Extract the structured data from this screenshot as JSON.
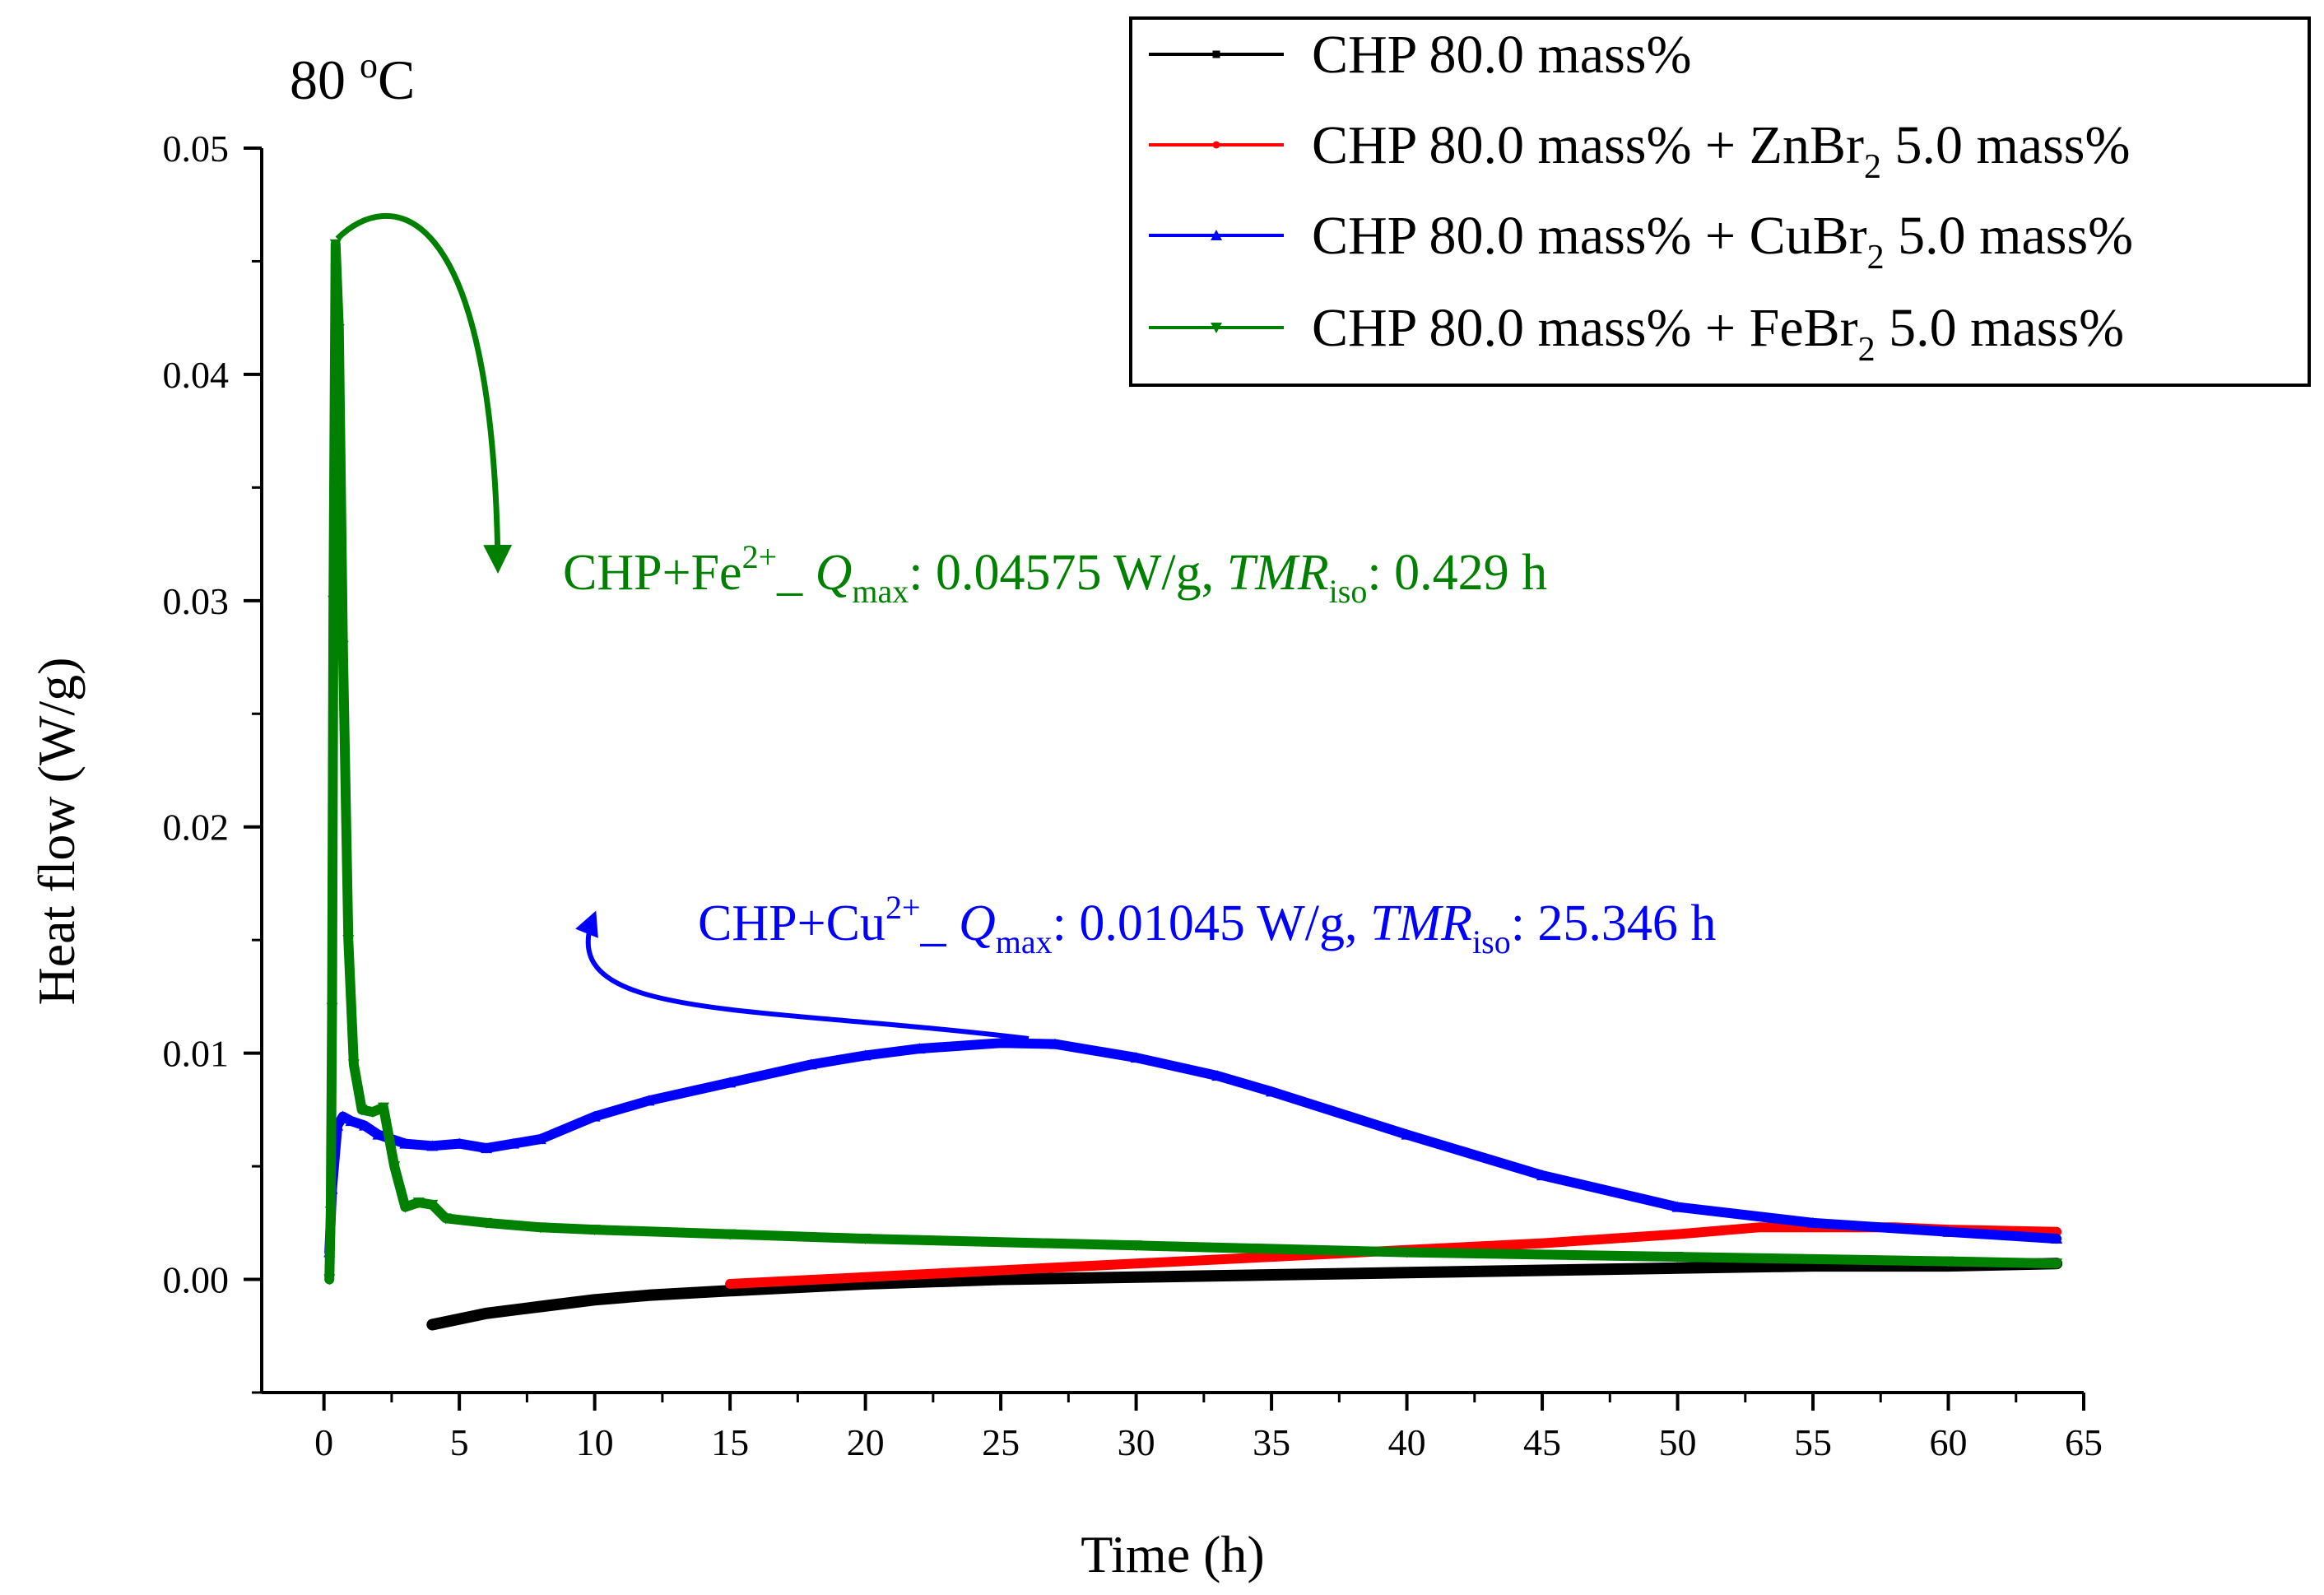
{
  "chart_data": {
    "type": "line",
    "title": "80 °C",
    "title_parts": {
      "value": "80 ",
      "sup": "o",
      "unit": "C"
    },
    "xlabel": "Time (h)",
    "ylabel": "Heat flow (W/g)",
    "xlim": [
      -2.3,
      65
    ],
    "ylim": [
      -0.005,
      0.05
    ],
    "xticks": [
      0,
      5,
      10,
      15,
      20,
      25,
      30,
      35,
      40,
      45,
      50,
      55,
      60,
      65
    ],
    "yticks": [
      0.0,
      0.01,
      0.02,
      0.03,
      0.04,
      0.05
    ],
    "xtick_labels": [
      "0",
      "5",
      "10",
      "15",
      "20",
      "25",
      "30",
      "35",
      "40",
      "45",
      "50",
      "55",
      "60",
      "65"
    ],
    "ytick_labels": [
      "0.00",
      "0.01",
      "0.02",
      "0.03",
      "0.04",
      "0.05"
    ],
    "grid": false,
    "legend_position": "top-right",
    "series": [
      {
        "name": "CHP 80.0 mass%",
        "legend_parts": {
          "base": "CHP 80.0 mass%",
          "sub": "",
          "tail": ""
        },
        "color": "#000000",
        "marker": "square",
        "x": [
          4,
          6,
          8,
          10,
          12,
          15,
          20,
          25,
          30,
          35,
          40,
          45,
          50,
          55,
          60,
          64
        ],
        "y": [
          -0.002,
          -0.0015,
          -0.0012,
          -0.0009,
          -0.0007,
          -0.0005,
          -0.0002,
          0.0,
          0.0001,
          0.0002,
          0.0003,
          0.0004,
          0.0005,
          0.0006,
          0.0006,
          0.0007
        ]
      },
      {
        "name": "CHP 80.0 mass% + ZnBr2 5.0 mass%",
        "legend_parts": {
          "base": "CHP 80.0 mass% + ZnBr",
          "sub": "2",
          "tail": " 5.0 mass%"
        },
        "color": "#ff0000",
        "marker": "circle",
        "x": [
          15,
          20,
          25,
          30,
          35,
          40,
          45,
          50,
          53,
          55,
          58,
          60,
          64
        ],
        "y": [
          -0.0002,
          0.0001,
          0.0004,
          0.0007,
          0.001,
          0.0013,
          0.0016,
          0.002,
          0.0023,
          0.0023,
          0.0023,
          0.0022,
          0.0021
        ]
      },
      {
        "name": "CHP 80.0 mass% + CuBr2 5.0 mass%",
        "legend_parts": {
          "base": "CHP 80.0 mass% + CuBr",
          "sub": "2",
          "tail": " 5.0 mass%"
        },
        "color": "#0000ff",
        "marker": "triangle-up",
        "x": [
          0.2,
          0.3,
          0.5,
          0.7,
          1.0,
          1.5,
          2.0,
          3.0,
          4.0,
          5.0,
          6.0,
          7.0,
          8.0,
          10,
          12,
          15,
          18,
          20,
          22,
          25,
          27,
          30,
          33,
          35,
          40,
          45,
          50,
          55,
          60,
          64
        ],
        "y": [
          0.0012,
          0.004,
          0.0068,
          0.0072,
          0.007,
          0.0068,
          0.0064,
          0.006,
          0.0059,
          0.006,
          0.0058,
          0.006,
          0.0062,
          0.0072,
          0.0079,
          0.0087,
          0.0095,
          0.0099,
          0.0102,
          0.01045,
          0.0104,
          0.0098,
          0.009,
          0.0083,
          0.0064,
          0.0046,
          0.0032,
          0.0025,
          0.0021,
          0.0018
        ]
      },
      {
        "name": "CHP 80.0 mass% + FeBr2 5.0 mass%",
        "legend_parts": {
          "base": "CHP 80.0 mass% + FeBr",
          "sub": "2",
          "tail": " 5.0 mass%"
        },
        "color": "#008000",
        "marker": "triangle-down",
        "x": [
          0.2,
          0.25,
          0.3,
          0.35,
          0.43,
          0.55,
          0.7,
          0.9,
          1.1,
          1.4,
          1.8,
          2.2,
          2.6,
          3.0,
          3.5,
          4.0,
          4.5,
          6,
          8,
          10,
          15,
          20,
          30,
          40,
          50,
          60,
          64
        ],
        "y": [
          0.0,
          0.003,
          0.012,
          0.03,
          0.04575,
          0.042,
          0.028,
          0.015,
          0.0095,
          0.0075,
          0.0074,
          0.0076,
          0.005,
          0.0032,
          0.0034,
          0.0033,
          0.0027,
          0.0025,
          0.0023,
          0.0022,
          0.002,
          0.0018,
          0.0015,
          0.0012,
          0.001,
          0.0008,
          0.0007
        ]
      }
    ],
    "annotations": [
      {
        "series": "CHP 80.0 mass% + FeBr2 5.0 mass%",
        "color": "#008000",
        "label_parts": {
          "ion": "CHP+Fe",
          "charge": "2+",
          "sep": "_ ",
          "q": "Q",
          "q_sub": "max",
          "q_value": ": 0.04575 W/g, ",
          "tmr": "TMR",
          "tmr_sub": "iso",
          "tmr_value": ": 0.429 h"
        },
        "text": "CHP+Fe2+_ Qmax: 0.04575 W/g, TMRiso: 0.429 h"
      },
      {
        "series": "CHP 80.0 mass% + CuBr2 5.0 mass%",
        "color": "#0000ff",
        "label_parts": {
          "ion": "CHP+Cu",
          "charge": "2+",
          "sep": "_ ",
          "q": "Q",
          "q_sub": "max",
          "q_value": ": 0.01045 W/g, ",
          "tmr": "TMR",
          "tmr_sub": "iso",
          "tmr_value": ": 25.346 h"
        },
        "text": "CHP+Cu2+_ Qmax: 0.01045 W/g, TMRiso: 25.346 h"
      }
    ]
  }
}
